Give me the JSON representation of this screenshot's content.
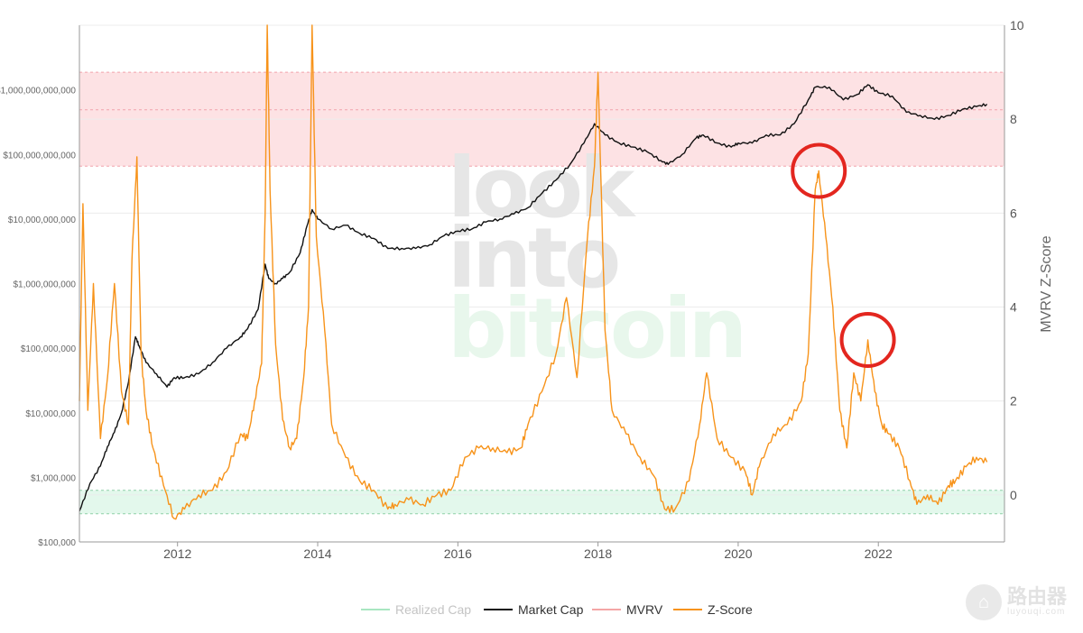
{
  "watermark": {
    "line1": "look",
    "line2": "into",
    "line3": "bitcoin"
  },
  "brand": {
    "name": "路由器",
    "url": "luyouqi.com",
    "icon": "router-icon"
  },
  "colors": {
    "market_cap": "#111111",
    "z_score": "#f7931a",
    "mvrv": "#f4a6a6",
    "realized_cap": "#a8e6c1",
    "red_band": "#fde2e4",
    "green_band": "#e3f8ec",
    "highlight": "#e3261f"
  },
  "chart_data": {
    "type": "line",
    "title": "",
    "x_range": [
      2010.6,
      2023.8
    ],
    "x_ticks": [
      {
        "value": 2012,
        "label": "2012"
      },
      {
        "value": 2014,
        "label": "2014"
      },
      {
        "value": 2016,
        "label": "2016"
      },
      {
        "value": 2018,
        "label": "2018"
      },
      {
        "value": 2020,
        "label": "2020"
      },
      {
        "value": 2022,
        "label": "2022"
      }
    ],
    "left_axis": {
      "scale": "log",
      "range": [
        100000,
        10000000000000
      ],
      "ticks": [
        {
          "value": 100000,
          "label": "$100,000"
        },
        {
          "value": 1000000,
          "label": "$1,000,000"
        },
        {
          "value": 10000000,
          "label": "$10,000,000"
        },
        {
          "value": 100000000,
          "label": "$100,000,000"
        },
        {
          "value": 1000000000,
          "label": "$1,000,000,000"
        },
        {
          "value": 10000000000,
          "label": "$10,000,000,000"
        },
        {
          "value": 100000000000,
          "label": "$100,000,000,000"
        },
        {
          "value": 1000000000000,
          "label": "$1,000,000,000,000"
        }
      ]
    },
    "right_axis": {
      "label": "MVRV Z-Score",
      "range": [
        -1,
        10
      ],
      "ticks": [
        {
          "value": 0,
          "label": "0"
        },
        {
          "value": 2,
          "label": "2"
        },
        {
          "value": 4,
          "label": "4"
        },
        {
          "value": 6,
          "label": "6"
        },
        {
          "value": 8,
          "label": "8"
        },
        {
          "value": 10,
          "label": "10"
        }
      ]
    },
    "bands": [
      {
        "axis": "right",
        "from": 7.0,
        "to": 9.0,
        "mid": 8.2,
        "color": "red"
      },
      {
        "axis": "right",
        "from": -0.4,
        "to": 0.1,
        "color": "green"
      }
    ],
    "highlights": [
      {
        "x": 2021.15,
        "y": 6.9
      },
      {
        "x": 2021.85,
        "y": 3.3
      }
    ],
    "series": [
      {
        "name": "Market Cap",
        "axis": "left",
        "x": [
          2010.6,
          2010.75,
          2010.9,
          2011.0,
          2011.1,
          2011.2,
          2011.3,
          2011.4,
          2011.45,
          2011.55,
          2011.7,
          2011.85,
          2011.95,
          2012.1,
          2012.3,
          2012.5,
          2012.7,
          2012.9,
          2013.0,
          2013.15,
          2013.25,
          2013.3,
          2013.4,
          2013.5,
          2013.6,
          2013.75,
          2013.85,
          2013.92,
          2014.0,
          2014.2,
          2014.4,
          2014.6,
          2014.8,
          2015.0,
          2015.2,
          2015.4,
          2015.6,
          2015.8,
          2016.0,
          2016.2,
          2016.4,
          2016.6,
          2016.8,
          2017.0,
          2017.2,
          2017.4,
          2017.6,
          2017.8,
          2017.95,
          2018.1,
          2018.3,
          2018.5,
          2018.7,
          2018.9,
          2019.0,
          2019.2,
          2019.4,
          2019.5,
          2019.7,
          2019.9,
          2020.0,
          2020.2,
          2020.4,
          2020.6,
          2020.8,
          2021.0,
          2021.1,
          2021.3,
          2021.5,
          2021.7,
          2021.85,
          2022.0,
          2022.2,
          2022.4,
          2022.6,
          2022.8,
          2023.0,
          2023.2,
          2023.4,
          2023.55
        ],
        "values": [
          300000,
          800000,
          1500000,
          3000000,
          5000000,
          10000000,
          30000000,
          150000000,
          110000000,
          60000000,
          40000000,
          25000000,
          35000000,
          35000000,
          40000000,
          60000000,
          100000000,
          150000000,
          200000000,
          400000000,
          2000000000,
          1200000000,
          1000000000,
          1200000000,
          1500000000,
          3000000000,
          8000000000,
          14000000000,
          10000000000,
          7000000000,
          8000000000,
          6000000000,
          5000000000,
          3500000000,
          3500000000,
          3500000000,
          4000000000,
          5500000000,
          6500000000,
          7000000000,
          9000000000,
          10000000000,
          12000000000,
          15000000000,
          25000000000,
          40000000000,
          70000000000,
          150000000000,
          300000000000,
          200000000000,
          150000000000,
          130000000000,
          110000000000,
          80000000000,
          70000000000,
          100000000000,
          180000000000,
          200000000000,
          150000000000,
          130000000000,
          150000000000,
          150000000000,
          200000000000,
          200000000000,
          300000000000,
          700000000000,
          1100000000000,
          1100000000000,
          700000000000,
          850000000000,
          1200000000000,
          900000000000,
          800000000000,
          450000000000,
          400000000000,
          350000000000,
          400000000000,
          500000000000,
          550000000000,
          600000000000
        ]
      },
      {
        "name": "Z-Score",
        "axis": "right",
        "x": [
          2010.6,
          2010.65,
          2010.72,
          2010.8,
          2010.9,
          2011.0,
          2011.1,
          2011.2,
          2011.3,
          2011.35,
          2011.42,
          2011.48,
          2011.55,
          2011.65,
          2011.8,
          2011.95,
          2012.1,
          2012.3,
          2012.5,
          2012.7,
          2012.9,
          2013.0,
          2013.1,
          2013.2,
          2013.25,
          2013.28,
          2013.32,
          2013.4,
          2013.5,
          2013.6,
          2013.7,
          2013.8,
          2013.87,
          2013.92,
          2013.98,
          2014.1,
          2014.2,
          2014.4,
          2014.6,
          2014.8,
          2015.0,
          2015.1,
          2015.3,
          2015.5,
          2015.7,
          2015.9,
          2016.1,
          2016.3,
          2016.5,
          2016.7,
          2016.9,
          2017.0,
          2017.2,
          2017.4,
          2017.55,
          2017.7,
          2017.85,
          2017.95,
          2018.0,
          2018.1,
          2018.2,
          2018.4,
          2018.6,
          2018.8,
          2018.95,
          2019.1,
          2019.3,
          2019.45,
          2019.55,
          2019.7,
          2019.9,
          2020.1,
          2020.2,
          2020.3,
          2020.5,
          2020.7,
          2020.9,
          2021.0,
          2021.1,
          2021.15,
          2021.25,
          2021.35,
          2021.45,
          2021.55,
          2021.65,
          2021.75,
          2021.85,
          2021.95,
          2022.05,
          2022.15,
          2022.3,
          2022.45,
          2022.55,
          2022.7,
          2022.85,
          2023.0,
          2023.1,
          2023.25,
          2023.4,
          2023.55
        ],
        "values": [
          2.0,
          6.2,
          1.8,
          4.5,
          1.2,
          2.5,
          4.5,
          2.2,
          1.5,
          5.0,
          7.2,
          3.0,
          1.8,
          1.0,
          0.2,
          -0.5,
          -0.3,
          0.0,
          0.1,
          0.5,
          1.3,
          1.2,
          2.0,
          2.8,
          6.0,
          10.0,
          6.5,
          3.2,
          1.6,
          1.0,
          1.2,
          2.5,
          4.0,
          10.0,
          5.5,
          3.5,
          1.5,
          0.8,
          0.3,
          0.1,
          -0.3,
          -0.2,
          -0.1,
          -0.2,
          0.0,
          0.1,
          0.8,
          1.0,
          1.0,
          0.9,
          1.0,
          1.5,
          2.2,
          3.0,
          4.2,
          2.5,
          5.5,
          7.0,
          9.0,
          3.5,
          1.8,
          1.3,
          0.8,
          0.4,
          -0.3,
          -0.3,
          0.3,
          1.5,
          2.6,
          1.2,
          0.8,
          0.5,
          0.0,
          0.6,
          1.3,
          1.5,
          2.0,
          3.0,
          6.5,
          6.9,
          5.5,
          4.0,
          1.8,
          1.0,
          2.6,
          2.0,
          3.3,
          2.2,
          1.5,
          1.3,
          1.0,
          0.3,
          -0.2,
          0.0,
          -0.2,
          0.2,
          0.3,
          0.6,
          0.8,
          0.7
        ]
      }
    ],
    "legend": {
      "placement": "bottom-center",
      "items": [
        {
          "name": "Realized Cap",
          "color": "#a8e6c1",
          "muted": true
        },
        {
          "name": "Market Cap",
          "color": "#111111",
          "muted": false
        },
        {
          "name": "MVRV",
          "color": "#f4a6a6",
          "muted": false
        },
        {
          "name": "Z-Score",
          "color": "#f7931a",
          "muted": false
        }
      ]
    }
  }
}
